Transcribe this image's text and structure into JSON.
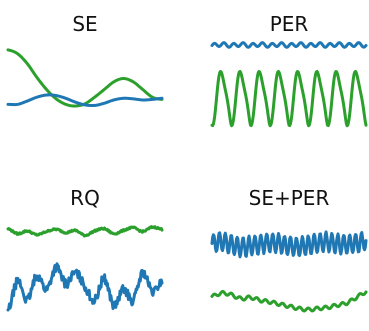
{
  "colors": {
    "blue": "#1f77b4",
    "green": "#2ca02c"
  },
  "chart_data": [
    {
      "type": "line",
      "title": "SE",
      "grid": false,
      "axes": "hidden",
      "x": [
        0,
        0.0625,
        0.125,
        0.1875,
        0.25,
        0.3125,
        0.375,
        0.4375,
        0.5,
        0.5625,
        0.625,
        0.6875,
        0.75,
        0.8125,
        0.875,
        0.9375,
        1
      ],
      "series": [
        {
          "color": "green",
          "values": [
            0.82,
            0.75,
            0.57,
            0.32,
            0.1,
            -0.07,
            -0.17,
            -0.2,
            -0.16,
            -0.04,
            0.1,
            0.24,
            0.3,
            0.24,
            0.1,
            -0.04,
            -0.08
          ]
        },
        {
          "color": "blue",
          "values": [
            -0.17,
            -0.17,
            -0.11,
            -0.04,
            0.0,
            -0.01,
            -0.06,
            -0.13,
            -0.18,
            -0.19,
            -0.15,
            -0.09,
            -0.06,
            -0.07,
            -0.09,
            -0.08,
            -0.06
          ]
        }
      ]
    },
    {
      "type": "line",
      "title": "PER",
      "grid": false,
      "axes": "hidden",
      "x": [
        0,
        0.0625,
        0.125,
        0.1875,
        0.25,
        0.3125,
        0.375,
        0.4375,
        0.5,
        0.5625,
        0.625,
        0.6875,
        0.75,
        0.8125,
        0.875,
        0.9375,
        1
      ],
      "series": [
        {
          "color": "blue",
          "shape": "fine periodic",
          "periods": 16,
          "values": [
            0.9,
            0.92,
            0.9,
            0.92,
            0.9,
            0.92,
            0.9,
            0.92,
            0.9,
            0.92,
            0.9,
            0.92,
            0.9,
            0.92,
            0.9,
            0.92,
            0.9
          ]
        },
        {
          "color": "green",
          "shape": "periodic spikes",
          "periods": 8,
          "values": [
            -0.5,
            0.4,
            -0.5,
            0.4,
            -0.5,
            0.4,
            -0.5,
            0.4,
            -0.5,
            0.4,
            -0.5,
            0.4,
            -0.5,
            0.4,
            -0.5,
            0.4,
            -0.5
          ]
        }
      ]
    },
    {
      "type": "line",
      "title": "RQ",
      "grid": false,
      "axes": "hidden",
      "x": [
        0,
        0.0625,
        0.125,
        0.1875,
        0.25,
        0.3125,
        0.375,
        0.4375,
        0.5,
        0.5625,
        0.625,
        0.6875,
        0.75,
        0.8125,
        0.875,
        0.9375,
        1
      ],
      "series": [
        {
          "color": "green",
          "values": [
            0.75,
            0.66,
            0.71,
            0.64,
            0.7,
            0.74,
            0.68,
            0.72,
            0.63,
            0.71,
            0.75,
            0.66,
            0.72,
            0.77,
            0.7,
            0.78,
            0.74
          ]
        },
        {
          "color": "blue",
          "values": [
            -0.75,
            -0.2,
            -0.55,
            -0.1,
            -0.35,
            0.05,
            -0.25,
            -0.05,
            -0.3,
            -0.55,
            -0.15,
            -0.65,
            -0.35,
            -0.55,
            -0.05,
            -0.4,
            -0.2
          ]
        }
      ]
    },
    {
      "type": "line",
      "title": "SE+PER",
      "grid": false,
      "axes": "hidden",
      "x": [
        0,
        0.0625,
        0.125,
        0.1875,
        0.25,
        0.3125,
        0.375,
        0.4375,
        0.5,
        0.5625,
        0.625,
        0.6875,
        0.75,
        0.8125,
        0.875,
        0.9375,
        1
      ],
      "series": [
        {
          "color": "blue",
          "shape": "dense periodic",
          "periods": 26,
          "values": [
            0.48,
            0.52,
            0.46,
            0.42,
            0.44,
            0.47,
            0.5,
            0.48,
            0.44,
            0.42,
            0.45,
            0.49,
            0.51,
            0.48,
            0.46,
            0.49,
            0.53
          ]
        },
        {
          "color": "green",
          "values": [
            -0.48,
            -0.42,
            -0.45,
            -0.52,
            -0.5,
            -0.55,
            -0.58,
            -0.62,
            -0.66,
            -0.7,
            -0.72,
            -0.7,
            -0.68,
            -0.64,
            -0.6,
            -0.5,
            -0.4
          ]
        }
      ]
    }
  ]
}
